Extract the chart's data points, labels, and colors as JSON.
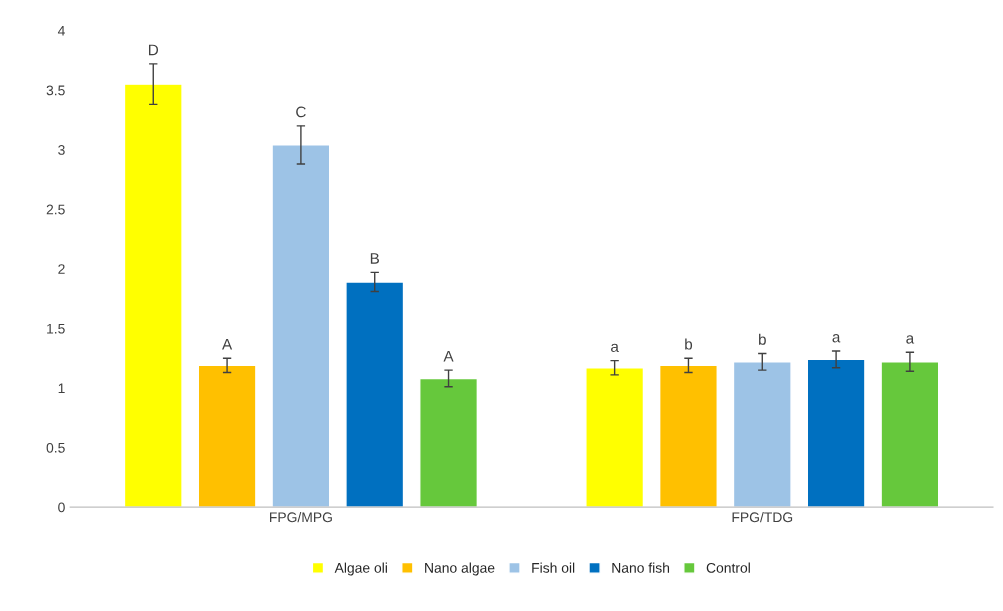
{
  "chart_data": {
    "type": "bar",
    "categories": [
      "FPG/MPG",
      "FPG/TDG"
    ],
    "series": [
      {
        "name": "Algae oli",
        "color": "#ffff00",
        "values": [
          3.55,
          1.17
        ],
        "errors": [
          0.17,
          0.06
        ],
        "value_labels": [
          "D",
          "a"
        ]
      },
      {
        "name": "Nano algae",
        "color": "#ffc000",
        "values": [
          1.19,
          1.19
        ],
        "errors": [
          0.06,
          0.06
        ],
        "value_labels": [
          "A",
          "b"
        ]
      },
      {
        "name": "Fish oil",
        "color": "#9dc3e6",
        "values": [
          3.04,
          1.22
        ],
        "errors": [
          0.16,
          0.07
        ],
        "value_labels": [
          "C",
          "b"
        ]
      },
      {
        "name": "Nano fish",
        "color": "#0070c0",
        "values": [
          1.89,
          1.24
        ],
        "errors": [
          0.08,
          0.07
        ],
        "value_labels": [
          "B",
          "a"
        ]
      },
      {
        "name": "Control",
        "color": "#66c83c",
        "values": [
          1.08,
          1.22
        ],
        "errors": [
          0.07,
          0.08
        ],
        "value_labels": [
          "A",
          "a"
        ]
      }
    ],
    "ylim": [
      0,
      4
    ],
    "yticks": [
      0,
      0.5,
      1,
      1.5,
      2,
      2.5,
      3,
      3.5,
      4
    ],
    "grid": false,
    "legend": "bottom"
  }
}
